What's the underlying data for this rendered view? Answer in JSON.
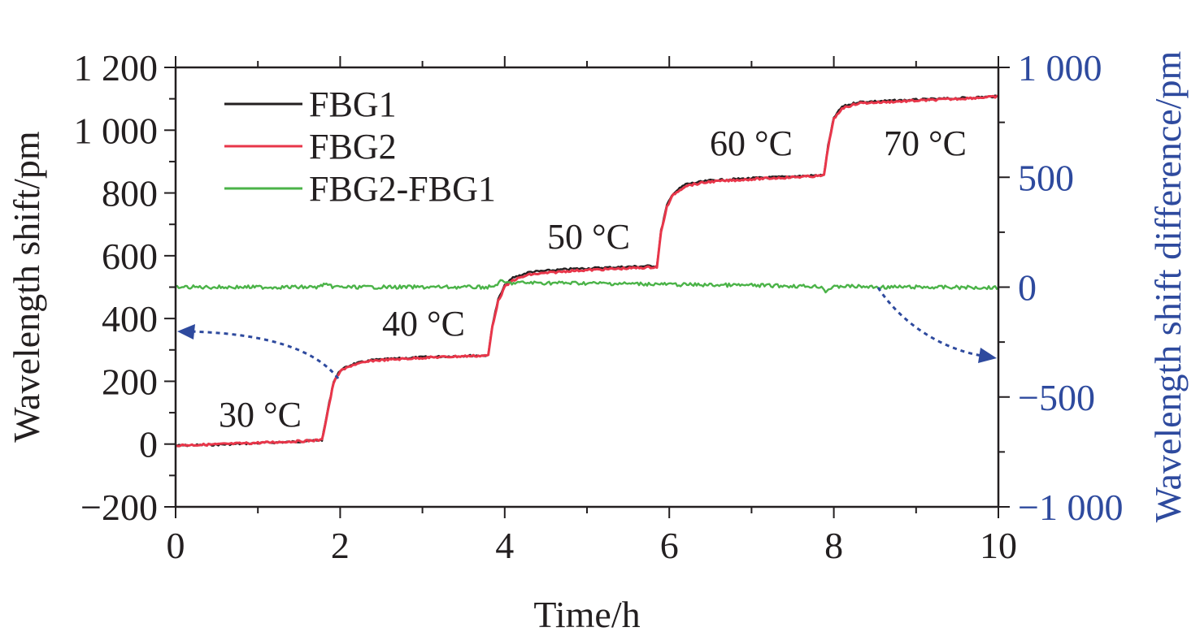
{
  "chart_data": {
    "type": "line",
    "xlabel": "Time/h",
    "ylabel": "Wavelength shift/pm",
    "y2label": "Wavelength shift difference/pm",
    "xlim": [
      0,
      10
    ],
    "ylim": [
      -200,
      1200
    ],
    "y2lim": [
      -1000,
      1000
    ],
    "x_ticks": [
      "0",
      "2",
      "4",
      "6",
      "8",
      "10"
    ],
    "y_ticks": [
      "−200",
      "0",
      "200",
      "400",
      "600",
      "800",
      "1 000",
      "1 200"
    ],
    "y2_ticks": [
      "−1 000",
      "−500",
      "0",
      "500",
      "1 000"
    ],
    "grid": false,
    "legend_position": "top-left",
    "annotations": [
      "30 °C",
      "40 °C",
      "50 °C",
      "60 °C",
      "70 °C"
    ],
    "series": [
      {
        "name": "FBG1",
        "axis": "left",
        "color": "#231f20",
        "points": [
          [
            0,
            -5
          ],
          [
            0.5,
            -2
          ],
          [
            1.0,
            3
          ],
          [
            1.5,
            8
          ],
          [
            1.78,
            13
          ],
          [
            1.85,
            110
          ],
          [
            1.92,
            200
          ],
          [
            2.0,
            235
          ],
          [
            2.15,
            255
          ],
          [
            2.4,
            268
          ],
          [
            3.0,
            277
          ],
          [
            3.5,
            281
          ],
          [
            3.8,
            283
          ],
          [
            3.85,
            380
          ],
          [
            3.92,
            460
          ],
          [
            4.0,
            505
          ],
          [
            4.1,
            530
          ],
          [
            4.3,
            548
          ],
          [
            4.8,
            558
          ],
          [
            5.5,
            565
          ],
          [
            5.85,
            568
          ],
          [
            5.9,
            680
          ],
          [
            5.97,
            760
          ],
          [
            6.05,
            800
          ],
          [
            6.2,
            828
          ],
          [
            6.5,
            840
          ],
          [
            7.0,
            847
          ],
          [
            7.88,
            857
          ],
          [
            7.93,
            950
          ],
          [
            8.0,
            1040
          ],
          [
            8.1,
            1075
          ],
          [
            8.3,
            1090
          ],
          [
            9.0,
            1097
          ],
          [
            9.5,
            1102
          ],
          [
            10.0,
            1108
          ]
        ]
      },
      {
        "name": "FBG2",
        "axis": "left",
        "color": "#e8364a",
        "points": [
          [
            0,
            -4
          ],
          [
            0.5,
            -1
          ],
          [
            1.0,
            4
          ],
          [
            1.5,
            9
          ],
          [
            1.78,
            13
          ],
          [
            1.85,
            105
          ],
          [
            1.92,
            195
          ],
          [
            2.0,
            232
          ],
          [
            2.15,
            252
          ],
          [
            2.4,
            266
          ],
          [
            3.0,
            275
          ],
          [
            3.5,
            280
          ],
          [
            3.8,
            282
          ],
          [
            3.85,
            375
          ],
          [
            3.92,
            455
          ],
          [
            4.0,
            500
          ],
          [
            4.1,
            522
          ],
          [
            4.3,
            540
          ],
          [
            4.8,
            552
          ],
          [
            5.5,
            560
          ],
          [
            5.85,
            564
          ],
          [
            5.9,
            675
          ],
          [
            5.97,
            755
          ],
          [
            6.05,
            795
          ],
          [
            6.2,
            823
          ],
          [
            6.5,
            836
          ],
          [
            7.0,
            844
          ],
          [
            7.88,
            855
          ],
          [
            7.93,
            945
          ],
          [
            8.0,
            1035
          ],
          [
            8.1,
            1070
          ],
          [
            8.3,
            1086
          ],
          [
            9.0,
            1094
          ],
          [
            9.5,
            1100
          ],
          [
            10.0,
            1107
          ]
        ]
      },
      {
        "name": "FBG2-FBG1",
        "axis": "right",
        "color": "#4bb348",
        "points": [
          [
            0,
            0
          ],
          [
            1.0,
            0
          ],
          [
            1.75,
            0
          ],
          [
            1.8,
            15
          ],
          [
            1.85,
            5
          ],
          [
            2.0,
            0
          ],
          [
            3.0,
            0
          ],
          [
            3.85,
            0
          ],
          [
            3.95,
            25
          ],
          [
            4.05,
            18
          ],
          [
            4.2,
            20
          ],
          [
            5.0,
            18
          ],
          [
            5.85,
            14
          ],
          [
            6.0,
            12
          ],
          [
            7.0,
            8
          ],
          [
            7.85,
            3
          ],
          [
            7.9,
            -20
          ],
          [
            7.95,
            -5
          ],
          [
            8.1,
            5
          ],
          [
            8.5,
            0
          ],
          [
            9.0,
            0
          ],
          [
            10.0,
            -2
          ]
        ]
      }
    ]
  }
}
